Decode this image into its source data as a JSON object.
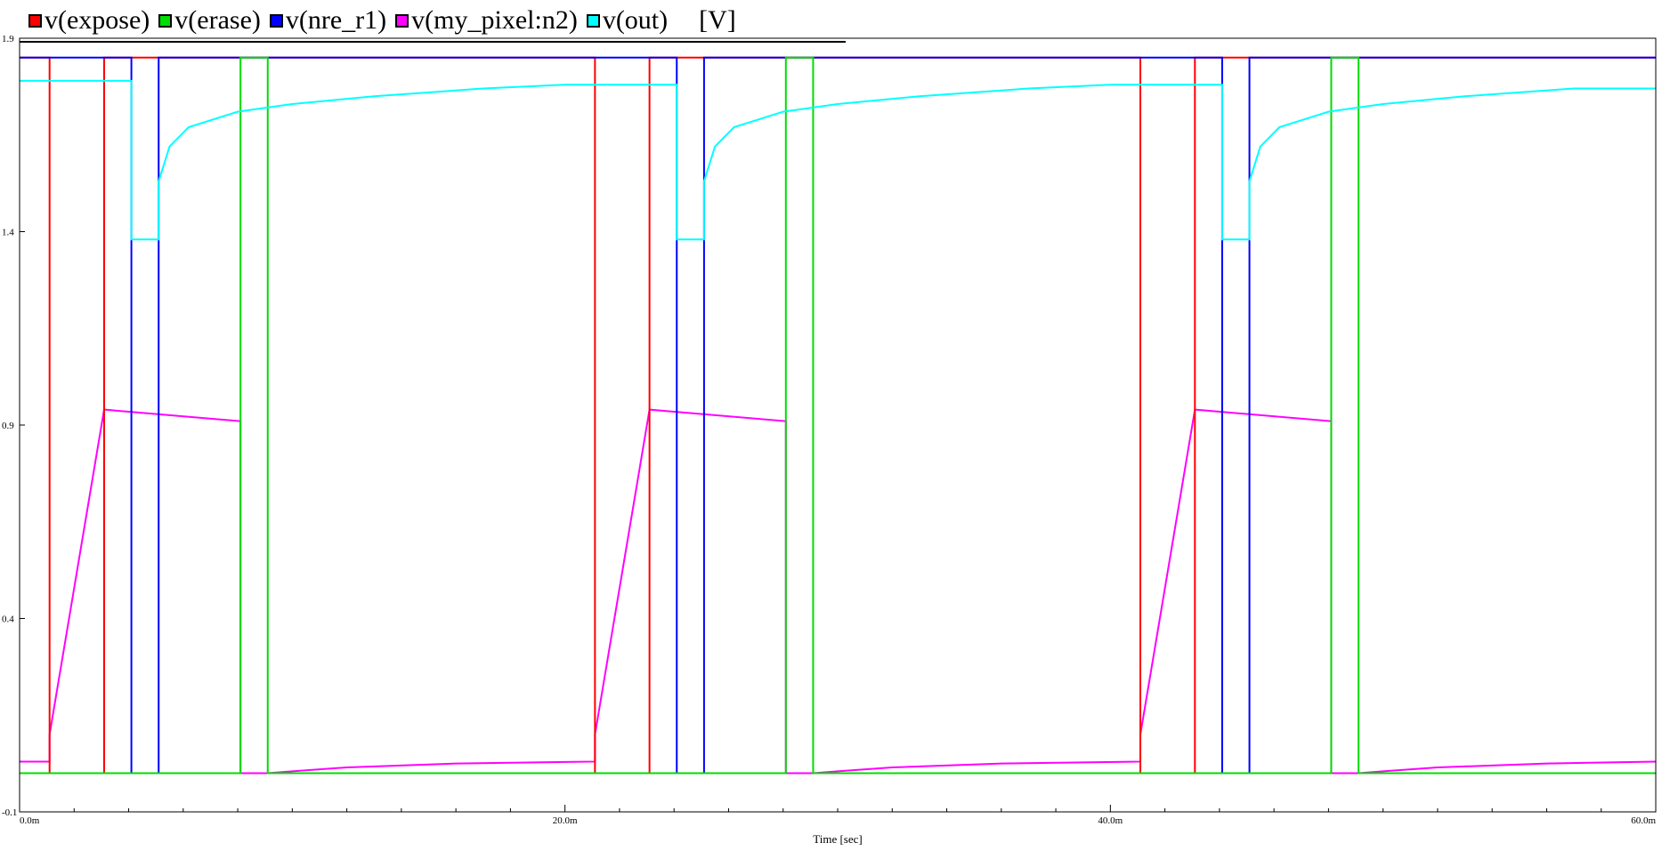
{
  "chart_data": {
    "type": "line",
    "title": "",
    "units_label": "[V]",
    "xlabel": "Time [sec]",
    "ylabel": "",
    "xlim": [
      0,
      60
    ],
    "ylim": [
      -0.1,
      1.9
    ],
    "x_ticks": [
      {
        "value": 0,
        "label": "0.0m"
      },
      {
        "value": 20,
        "label": "20.0m"
      },
      {
        "value": 40,
        "label": "40.0m"
      },
      {
        "value": 60,
        "label": "60.0m"
      }
    ],
    "x_minor_ticks": [
      2,
      4,
      6,
      8,
      10,
      12,
      14,
      16,
      18,
      22,
      24,
      26,
      28,
      30,
      32,
      34,
      36,
      38,
      42,
      44,
      46,
      48,
      50,
      52,
      54,
      56,
      58
    ],
    "y_ticks": [
      {
        "value": -0.1,
        "label": "-0.1"
      },
      {
        "value": 0.4,
        "label": "0.4"
      },
      {
        "value": 0.9,
        "label": "0.9"
      },
      {
        "value": 1.4,
        "label": "1.4"
      },
      {
        "value": 1.9,
        "label": "1.9"
      }
    ],
    "grid": false,
    "legend_position": "top-left",
    "series": [
      {
        "name": "v(expose)",
        "color": "#ff0000",
        "points": [
          [
            0,
            1.85
          ],
          [
            1.1,
            1.85
          ],
          [
            1.1,
            0.0
          ],
          [
            3.1,
            0.0
          ],
          [
            3.1,
            1.85
          ],
          [
            21.1,
            1.85
          ],
          [
            21.1,
            0.0
          ],
          [
            23.1,
            0.0
          ],
          [
            23.1,
            1.85
          ],
          [
            41.1,
            1.85
          ],
          [
            41.1,
            0.0
          ],
          [
            43.1,
            0.0
          ],
          [
            43.1,
            1.85
          ],
          [
            60,
            1.85
          ]
        ]
      },
      {
        "name": "v(erase)",
        "color": "#00dd00",
        "points": [
          [
            0,
            0.0
          ],
          [
            8.1,
            0.0
          ],
          [
            8.1,
            1.85
          ],
          [
            9.1,
            1.85
          ],
          [
            9.1,
            0.0
          ],
          [
            28.1,
            0.0
          ],
          [
            28.1,
            1.85
          ],
          [
            29.1,
            1.85
          ],
          [
            29.1,
            0.0
          ],
          [
            48.1,
            0.0
          ],
          [
            48.1,
            1.85
          ],
          [
            49.1,
            1.85
          ],
          [
            49.1,
            0.0
          ],
          [
            60,
            0.0
          ]
        ]
      },
      {
        "name": "v(nre_r1)",
        "color": "#0000ff",
        "points": [
          [
            0,
            1.85
          ],
          [
            4.1,
            1.85
          ],
          [
            4.1,
            0.0
          ],
          [
            5.1,
            0.0
          ],
          [
            5.1,
            1.85
          ],
          [
            24.1,
            1.85
          ],
          [
            24.1,
            0.0
          ],
          [
            25.1,
            0.0
          ],
          [
            25.1,
            1.85
          ],
          [
            44.1,
            1.85
          ],
          [
            44.1,
            0.0
          ],
          [
            45.1,
            0.0
          ],
          [
            45.1,
            1.85
          ],
          [
            60,
            1.85
          ]
        ]
      },
      {
        "name": "v(my_pixel:n2)",
        "color": "#ff00ff",
        "points": [
          [
            0,
            0.03
          ],
          [
            1.1,
            0.03
          ],
          [
            1.1,
            0.1
          ],
          [
            3.1,
            0.94
          ],
          [
            8.1,
            0.91
          ],
          [
            8.1,
            0.0
          ],
          [
            9.1,
            0.0
          ],
          [
            10,
            0.005
          ],
          [
            12,
            0.015
          ],
          [
            16,
            0.025
          ],
          [
            21.1,
            0.03
          ],
          [
            21.1,
            0.1
          ],
          [
            23.1,
            0.94
          ],
          [
            28.1,
            0.91
          ],
          [
            28.1,
            0.0
          ],
          [
            29.1,
            0.0
          ],
          [
            30,
            0.005
          ],
          [
            32,
            0.015
          ],
          [
            36,
            0.025
          ],
          [
            41.1,
            0.03
          ],
          [
            41.1,
            0.1
          ],
          [
            43.1,
            0.94
          ],
          [
            48.1,
            0.91
          ],
          [
            48.1,
            0.0
          ],
          [
            49.1,
            0.0
          ],
          [
            50,
            0.005
          ],
          [
            52,
            0.015
          ],
          [
            56,
            0.025
          ],
          [
            60,
            0.03
          ]
        ]
      },
      {
        "name": "v(out)",
        "color": "#00ffff",
        "points": [
          [
            0,
            1.79
          ],
          [
            4.1,
            1.79
          ],
          [
            4.1,
            1.38
          ],
          [
            5.1,
            1.38
          ],
          [
            5.1,
            1.53
          ],
          [
            5.5,
            1.62
          ],
          [
            6.2,
            1.67
          ],
          [
            8,
            1.71
          ],
          [
            10,
            1.73
          ],
          [
            13,
            1.75
          ],
          [
            17,
            1.77
          ],
          [
            20,
            1.78
          ],
          [
            24.1,
            1.78
          ],
          [
            24.1,
            1.38
          ],
          [
            25.1,
            1.38
          ],
          [
            25.1,
            1.53
          ],
          [
            25.5,
            1.62
          ],
          [
            26.2,
            1.67
          ],
          [
            28,
            1.71
          ],
          [
            30,
            1.73
          ],
          [
            33,
            1.75
          ],
          [
            37,
            1.77
          ],
          [
            40,
            1.78
          ],
          [
            44.1,
            1.78
          ],
          [
            44.1,
            1.38
          ],
          [
            45.1,
            1.38
          ],
          [
            45.1,
            1.53
          ],
          [
            45.5,
            1.62
          ],
          [
            46.2,
            1.67
          ],
          [
            48,
            1.71
          ],
          [
            50,
            1.73
          ],
          [
            53,
            1.75
          ],
          [
            57,
            1.77
          ],
          [
            60,
            1.77
          ]
        ]
      }
    ]
  }
}
